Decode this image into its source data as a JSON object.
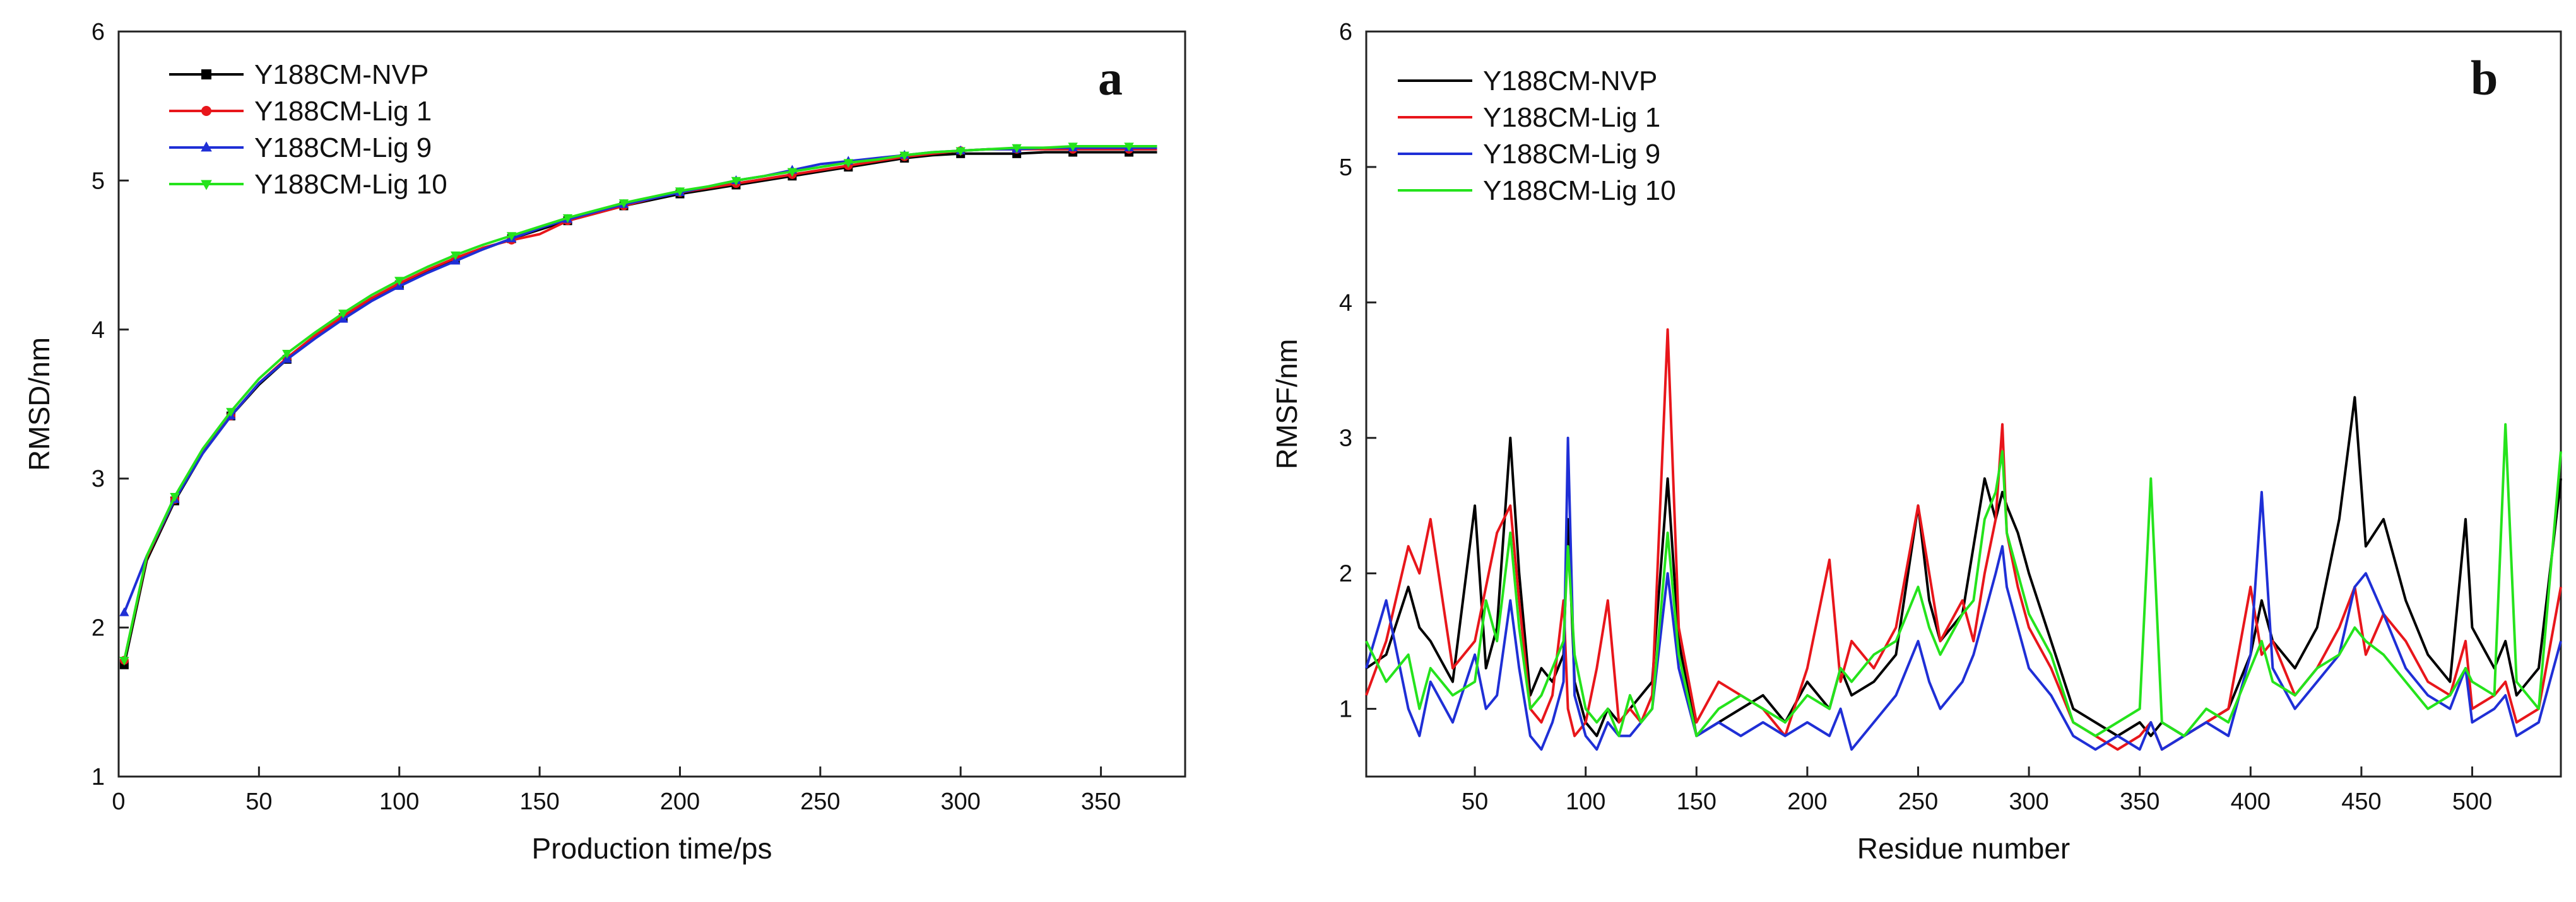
{
  "chart_data": [
    {
      "type": "line",
      "panel_label": "a",
      "xlabel": "Production time/ps",
      "ylabel": "RMSD/nm",
      "xlim": [
        0,
        380
      ],
      "ylim": [
        1,
        6
      ],
      "x_ticks": [
        0,
        50,
        100,
        150,
        200,
        250,
        300,
        350
      ],
      "y_ticks": [
        1,
        2,
        3,
        4,
        5,
        6
      ],
      "legend_position": "top-left",
      "x": [
        2,
        10,
        20,
        30,
        40,
        50,
        60,
        70,
        80,
        90,
        100,
        110,
        120,
        130,
        140,
        150,
        160,
        170,
        180,
        190,
        200,
        210,
        220,
        230,
        240,
        250,
        260,
        270,
        280,
        290,
        300,
        310,
        320,
        330,
        340,
        350,
        360,
        370
      ],
      "series": [
        {
          "name": "Y188CM-NVP",
          "color": "#000000",
          "marker": "square",
          "values": [
            1.75,
            2.45,
            2.85,
            3.17,
            3.42,
            3.63,
            3.8,
            3.95,
            4.08,
            4.2,
            4.3,
            4.39,
            4.47,
            4.54,
            4.61,
            4.67,
            4.73,
            4.78,
            4.83,
            4.87,
            4.91,
            4.94,
            4.97,
            5.0,
            5.03,
            5.06,
            5.09,
            5.12,
            5.15,
            5.17,
            5.18,
            5.18,
            5.18,
            5.19,
            5.19,
            5.19,
            5.19,
            5.19
          ]
        },
        {
          "name": "Y188CM-Lig 1",
          "color": "#e8161b",
          "marker": "circle",
          "values": [
            1.78,
            2.47,
            2.86,
            3.18,
            3.42,
            3.64,
            3.81,
            3.96,
            4.09,
            4.21,
            4.31,
            4.4,
            4.48,
            4.55,
            4.6,
            4.64,
            4.73,
            4.78,
            4.83,
            4.88,
            4.92,
            4.95,
            4.98,
            5.01,
            5.04,
            5.07,
            5.1,
            5.13,
            5.16,
            5.18,
            5.2,
            5.21,
            5.21,
            5.21,
            5.21,
            5.21,
            5.21,
            5.21
          ]
        },
        {
          "name": "Y188CM-Lig 9",
          "color": "#1f2fd6",
          "marker": "triangle-up",
          "values": [
            2.1,
            2.48,
            2.86,
            3.17,
            3.42,
            3.64,
            3.8,
            3.94,
            4.07,
            4.19,
            4.29,
            4.38,
            4.46,
            4.54,
            4.61,
            4.68,
            4.74,
            4.79,
            4.84,
            4.88,
            4.92,
            4.96,
            5.0,
            5.03,
            5.07,
            5.11,
            5.13,
            5.15,
            5.17,
            5.19,
            5.2,
            5.21,
            5.21,
            5.22,
            5.22,
            5.22,
            5.22,
            5.22
          ]
        },
        {
          "name": "Y188CM-Lig 10",
          "color": "#25e31c",
          "marker": "triangle-down",
          "values": [
            1.78,
            2.48,
            2.88,
            3.2,
            3.45,
            3.67,
            3.84,
            3.98,
            4.11,
            4.23,
            4.33,
            4.42,
            4.5,
            4.57,
            4.63,
            4.69,
            4.75,
            4.8,
            4.85,
            4.89,
            4.93,
            4.96,
            5.0,
            5.03,
            5.06,
            5.09,
            5.12,
            5.14,
            5.17,
            5.19,
            5.2,
            5.21,
            5.22,
            5.22,
            5.23,
            5.23,
            5.23,
            5.23
          ]
        }
      ]
    },
    {
      "type": "line",
      "panel_label": "b",
      "xlabel": "Residue number",
      "ylabel": "RMSF/nm",
      "xlim": [
        1,
        540
      ],
      "ylim": [
        0.5,
        6
      ],
      "x_ticks": [
        50,
        100,
        150,
        200,
        250,
        300,
        350,
        400,
        450,
        500
      ],
      "y_ticks": [
        1,
        2,
        3,
        4,
        5,
        6
      ],
      "legend_position": "top-left",
      "x": [
        1,
        10,
        20,
        25,
        30,
        40,
        50,
        55,
        60,
        66,
        70,
        75,
        80,
        85,
        90,
        92,
        95,
        100,
        105,
        110,
        115,
        120,
        125,
        130,
        137,
        142,
        150,
        160,
        170,
        180,
        190,
        200,
        210,
        215,
        220,
        230,
        240,
        250,
        255,
        260,
        270,
        275,
        280,
        285,
        288,
        290,
        295,
        300,
        310,
        320,
        330,
        340,
        350,
        355,
        360,
        370,
        380,
        390,
        400,
        405,
        410,
        420,
        430,
        440,
        447,
        452,
        460,
        470,
        480,
        490,
        497,
        500,
        510,
        515,
        520,
        530,
        540
      ],
      "series": [
        {
          "name": "Y188CM-NVP",
          "color": "#000000",
          "values": [
            1.3,
            1.4,
            1.9,
            1.6,
            1.5,
            1.2,
            2.5,
            1.3,
            1.6,
            3.0,
            2.0,
            1.1,
            1.3,
            1.2,
            1.4,
            2.4,
            1.2,
            0.9,
            0.8,
            1.0,
            0.9,
            1.0,
            1.1,
            1.2,
            2.7,
            1.5,
            0.8,
            0.9,
            1.0,
            1.1,
            0.9,
            1.2,
            1.0,
            1.3,
            1.1,
            1.2,
            1.4,
            2.5,
            1.8,
            1.5,
            1.7,
            2.2,
            2.7,
            2.4,
            2.6,
            2.5,
            2.3,
            2.0,
            1.5,
            1.0,
            0.9,
            0.8,
            0.9,
            0.8,
            0.9,
            0.8,
            0.9,
            1.0,
            1.4,
            1.8,
            1.5,
            1.3,
            1.6,
            2.4,
            3.3,
            2.2,
            2.4,
            1.8,
            1.4,
            1.2,
            2.4,
            1.6,
            1.3,
            1.5,
            1.1,
            1.3,
            2.7
          ]
        },
        {
          "name": "Y188CM-Lig 1",
          "color": "#e8161b",
          "values": [
            1.1,
            1.5,
            2.2,
            2.0,
            2.4,
            1.3,
            1.5,
            1.9,
            2.3,
            2.5,
            1.8,
            1.0,
            0.9,
            1.1,
            1.8,
            1.0,
            0.8,
            0.9,
            1.3,
            1.8,
            0.9,
            1.0,
            0.9,
            1.1,
            3.8,
            1.6,
            0.9,
            1.2,
            1.1,
            1.0,
            0.8,
            1.3,
            2.1,
            1.2,
            1.5,
            1.3,
            1.6,
            2.5,
            2.0,
            1.5,
            1.8,
            1.5,
            2.0,
            2.4,
            3.1,
            2.3,
            1.9,
            1.6,
            1.3,
            0.9,
            0.8,
            0.7,
            0.8,
            0.9,
            0.7,
            0.8,
            0.9,
            1.0,
            1.9,
            1.4,
            1.5,
            1.1,
            1.3,
            1.6,
            1.9,
            1.4,
            1.7,
            1.5,
            1.2,
            1.1,
            1.5,
            1.0,
            1.1,
            1.2,
            0.9,
            1.0,
            1.9
          ]
        },
        {
          "name": "Y188CM-Lig 9",
          "color": "#1f2fd6",
          "values": [
            1.3,
            1.8,
            1.0,
            0.8,
            1.2,
            0.9,
            1.4,
            1.0,
            1.1,
            1.8,
            1.3,
            0.8,
            0.7,
            0.9,
            1.2,
            3.0,
            1.1,
            0.8,
            0.7,
            0.9,
            0.8,
            0.8,
            0.9,
            1.0,
            2.0,
            1.3,
            0.8,
            0.9,
            0.8,
            0.9,
            0.8,
            0.9,
            0.8,
            1.0,
            0.7,
            0.9,
            1.1,
            1.5,
            1.2,
            1.0,
            1.2,
            1.4,
            1.7,
            2.0,
            2.2,
            1.9,
            1.6,
            1.3,
            1.1,
            0.8,
            0.7,
            0.8,
            0.7,
            0.9,
            0.7,
            0.8,
            0.9,
            0.8,
            1.4,
            2.6,
            1.3,
            1.0,
            1.2,
            1.4,
            1.9,
            2.0,
            1.7,
            1.3,
            1.1,
            1.0,
            1.3,
            0.9,
            1.0,
            1.1,
            0.8,
            0.9,
            1.5
          ]
        },
        {
          "name": "Y188CM-Lig 10",
          "color": "#25e31c",
          "values": [
            1.5,
            1.2,
            1.4,
            1.0,
            1.3,
            1.1,
            1.2,
            1.8,
            1.5,
            2.3,
            1.6,
            1.0,
            1.1,
            1.3,
            1.5,
            2.2,
            1.4,
            1.0,
            0.9,
            1.0,
            0.8,
            1.1,
            0.9,
            1.0,
            2.3,
            1.4,
            0.8,
            1.0,
            1.1,
            1.0,
            0.9,
            1.1,
            1.0,
            1.3,
            1.2,
            1.4,
            1.5,
            1.9,
            1.6,
            1.4,
            1.7,
            1.8,
            2.4,
            2.6,
            2.9,
            2.3,
            2.0,
            1.7,
            1.4,
            0.9,
            0.8,
            0.9,
            1.0,
            2.7,
            0.9,
            0.8,
            1.0,
            0.9,
            1.3,
            1.5,
            1.2,
            1.1,
            1.3,
            1.4,
            1.6,
            1.5,
            1.4,
            1.2,
            1.0,
            1.1,
            1.3,
            1.2,
            1.1,
            3.1,
            1.2,
            1.0,
            2.9
          ]
        }
      ]
    }
  ]
}
